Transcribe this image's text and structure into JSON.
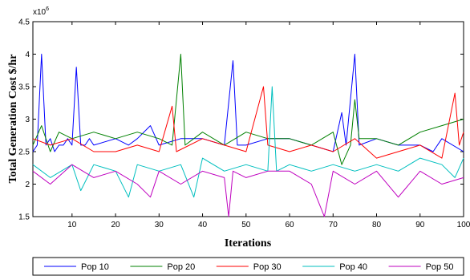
{
  "chart_data": {
    "type": "line",
    "xlabel": "Iterations",
    "ylabel": "Total Generation Cost $/hr",
    "y_multiplier_label": "x10",
    "y_multiplier_exp": "6",
    "xlim": [
      1,
      100
    ],
    "ylim": [
      1.5,
      4.5
    ],
    "x_ticks": [
      "10",
      "20",
      "30",
      "40",
      "50",
      "60",
      "70",
      "80",
      "90",
      "100"
    ],
    "y_ticks": [
      "1.5",
      "2",
      "2.5",
      "3",
      "3.5",
      "4",
      "4.5"
    ],
    "legend_position": "bottom",
    "series": [
      {
        "name": "Pop 10",
        "color": "#0000ff",
        "points": [
          [
            1,
            2.5
          ],
          [
            2,
            2.6
          ],
          [
            3,
            4.0
          ],
          [
            4,
            2.6
          ],
          [
            5,
            2.7
          ],
          [
            6,
            2.5
          ],
          [
            7,
            2.6
          ],
          [
            8,
            2.6
          ],
          [
            9,
            2.7
          ],
          [
            10,
            2.6
          ],
          [
            11,
            3.8
          ],
          [
            12,
            2.6
          ],
          [
            13,
            2.6
          ],
          [
            14,
            2.7
          ],
          [
            15,
            2.6
          ],
          [
            20,
            2.7
          ],
          [
            23,
            2.6
          ],
          [
            25,
            2.7
          ],
          [
            28,
            2.9
          ],
          [
            30,
            2.6
          ],
          [
            35,
            2.7
          ],
          [
            40,
            2.7
          ],
          [
            45,
            2.6
          ],
          [
            47,
            3.9
          ],
          [
            48,
            2.6
          ],
          [
            50,
            2.6
          ],
          [
            55,
            2.7
          ],
          [
            60,
            2.7
          ],
          [
            65,
            2.6
          ],
          [
            70,
            2.5
          ],
          [
            72,
            3.1
          ],
          [
            73,
            2.6
          ],
          [
            75,
            4.0
          ],
          [
            76,
            2.6
          ],
          [
            80,
            2.7
          ],
          [
            85,
            2.6
          ],
          [
            90,
            2.6
          ],
          [
            93,
            2.5
          ],
          [
            95,
            2.7
          ],
          [
            100,
            2.5
          ]
        ]
      },
      {
        "name": "Pop 20",
        "color": "#008000",
        "points": [
          [
            1,
            2.6
          ],
          [
            3,
            2.9
          ],
          [
            5,
            2.5
          ],
          [
            7,
            2.8
          ],
          [
            10,
            2.7
          ],
          [
            15,
            2.8
          ],
          [
            20,
            2.7
          ],
          [
            25,
            2.8
          ],
          [
            30,
            2.7
          ],
          [
            33,
            2.6
          ],
          [
            35,
            4.0
          ],
          [
            36,
            2.6
          ],
          [
            40,
            2.8
          ],
          [
            45,
            2.6
          ],
          [
            50,
            2.8
          ],
          [
            55,
            2.7
          ],
          [
            60,
            2.7
          ],
          [
            65,
            2.6
          ],
          [
            70,
            2.8
          ],
          [
            72,
            2.3
          ],
          [
            74,
            2.6
          ],
          [
            75,
            3.3
          ],
          [
            76,
            2.7
          ],
          [
            80,
            2.7
          ],
          [
            85,
            2.6
          ],
          [
            90,
            2.8
          ],
          [
            95,
            2.9
          ],
          [
            100,
            3.0
          ]
        ]
      },
      {
        "name": "Pop 30",
        "color": "#ff0000",
        "points": [
          [
            1,
            2.7
          ],
          [
            5,
            2.6
          ],
          [
            10,
            2.7
          ],
          [
            15,
            2.5
          ],
          [
            20,
            2.5
          ],
          [
            25,
            2.6
          ],
          [
            30,
            2.5
          ],
          [
            33,
            3.2
          ],
          [
            34,
            2.5
          ],
          [
            40,
            2.7
          ],
          [
            45,
            2.6
          ],
          [
            50,
            2.5
          ],
          [
            54,
            3.5
          ],
          [
            55,
            2.6
          ],
          [
            60,
            2.5
          ],
          [
            65,
            2.6
          ],
          [
            70,
            2.5
          ],
          [
            75,
            2.7
          ],
          [
            80,
            2.4
          ],
          [
            85,
            2.5
          ],
          [
            90,
            2.6
          ],
          [
            95,
            2.4
          ],
          [
            98,
            3.4
          ],
          [
            99,
            2.6
          ],
          [
            100,
            2.8
          ]
        ]
      },
      {
        "name": "Pop 40",
        "color": "#00bfbf",
        "points": [
          [
            1,
            2.3
          ],
          [
            5,
            2.1
          ],
          [
            10,
            2.3
          ],
          [
            12,
            1.9
          ],
          [
            15,
            2.3
          ],
          [
            20,
            2.2
          ],
          [
            23,
            1.8
          ],
          [
            25,
            2.3
          ],
          [
            30,
            2.2
          ],
          [
            35,
            2.3
          ],
          [
            38,
            1.8
          ],
          [
            40,
            2.4
          ],
          [
            45,
            2.2
          ],
          [
            50,
            2.3
          ],
          [
            55,
            2.2
          ],
          [
            56,
            3.5
          ],
          [
            57,
            2.2
          ],
          [
            60,
            2.3
          ],
          [
            65,
            2.2
          ],
          [
            70,
            2.3
          ],
          [
            75,
            2.2
          ],
          [
            80,
            2.3
          ],
          [
            85,
            2.2
          ],
          [
            90,
            2.4
          ],
          [
            95,
            2.3
          ],
          [
            98,
            2.1
          ],
          [
            100,
            2.4
          ]
        ]
      },
      {
        "name": "Pop 50",
        "color": "#bf00bf",
        "points": [
          [
            1,
            2.2
          ],
          [
            5,
            2.0
          ],
          [
            10,
            2.3
          ],
          [
            15,
            2.1
          ],
          [
            20,
            2.2
          ],
          [
            25,
            2.0
          ],
          [
            28,
            1.8
          ],
          [
            30,
            2.2
          ],
          [
            35,
            2.0
          ],
          [
            40,
            2.2
          ],
          [
            45,
            2.1
          ],
          [
            46,
            1.5
          ],
          [
            47,
            2.2
          ],
          [
            50,
            2.1
          ],
          [
            55,
            2.2
          ],
          [
            60,
            2.2
          ],
          [
            65,
            2.0
          ],
          [
            68,
            1.5
          ],
          [
            70,
            2.2
          ],
          [
            75,
            2.0
          ],
          [
            80,
            2.2
          ],
          [
            85,
            1.8
          ],
          [
            90,
            2.2
          ],
          [
            95,
            2.0
          ],
          [
            100,
            2.1
          ]
        ]
      }
    ]
  }
}
